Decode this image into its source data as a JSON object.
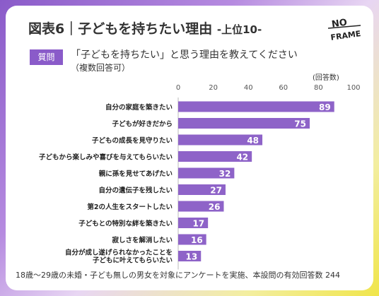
{
  "header": {
    "title": "図表6｜子どもを持ちたい理由",
    "title_suffix": "-上位10-",
    "logo_text": "NO FRAME"
  },
  "question": {
    "badge": "質問",
    "text": "「子どもを持ちたい」と思う理由を教えてください",
    "note": "（複数回答可）"
  },
  "chart_data": {
    "type": "bar",
    "orientation": "horizontal",
    "unit_label": "(回答数)",
    "xlim": [
      0,
      100
    ],
    "ticks": [
      0,
      20,
      40,
      60,
      80,
      100
    ],
    "grid": false,
    "bar_color": "#8e63c8",
    "categories": [
      "自分の家庭を築きたい",
      "子どもが好きだから",
      "子どもの成長を見守りたい",
      "子どもから楽しみや喜びを与えてもらいたい",
      "親に孫を見せてあげたい",
      "自分の遺伝子を残したい",
      "第2の人生をスタートしたい",
      "子どもとの特別な絆を築きたい",
      "寂しさを解消したい",
      "自分が成し遂げられなかったことを子どもに叶えてもらいたい"
    ],
    "values": [
      89,
      75,
      48,
      42,
      32,
      27,
      26,
      17,
      16,
      13
    ]
  },
  "footer": {
    "note": "18歳～29歳の未婚・子ども無しの男女を対象にアンケートを実施、本設問の有効回答数 244"
  },
  "colors": {
    "accent": "#8a5bc9",
    "text": "#333333"
  }
}
